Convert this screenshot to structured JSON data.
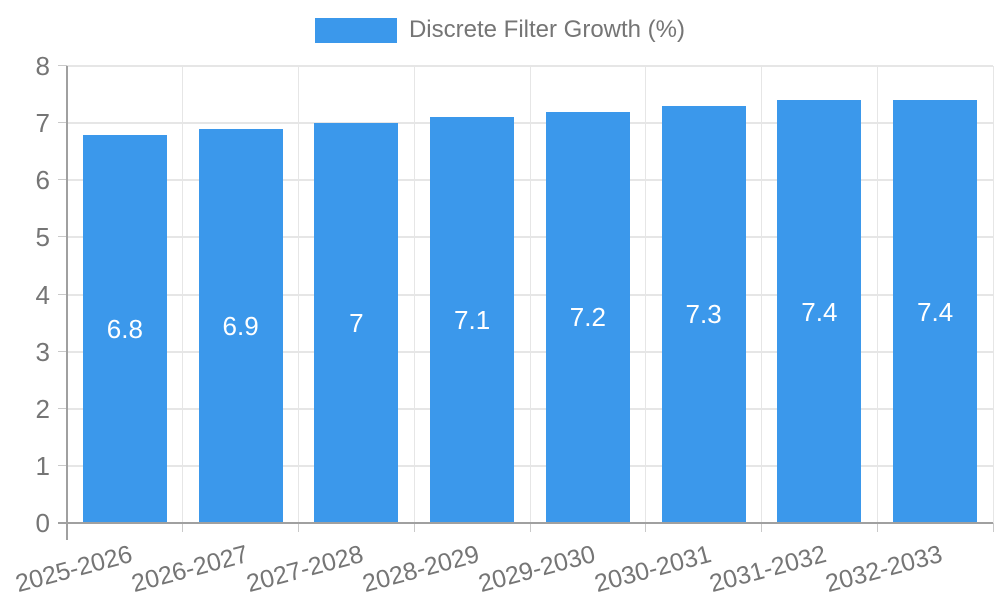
{
  "legend": {
    "label": "Discrete Filter Growth (%)"
  },
  "colors": {
    "bar": "#3b98eb",
    "bar_label_text": "#ffffff",
    "axis_text": "#757575",
    "legend_text": "#757575",
    "gridline": "#e6e6e6",
    "axis_line": "#a0a0a0",
    "tick": "#c9c9c9",
    "background": "#ffffff"
  },
  "chart_data": {
    "type": "bar",
    "title": "Discrete Filter Growth (%)",
    "categories": [
      "2025-2026",
      "2026-2027",
      "2027-2028",
      "2028-2029",
      "2029-2030",
      "2030-2031",
      "2031-2032",
      "2032-2033"
    ],
    "values": [
      6.8,
      6.9,
      7,
      7.1,
      7.2,
      7.3,
      7.4,
      7.4
    ],
    "bar_labels": [
      "6.8",
      "6.9",
      "7",
      "7.1",
      "7.2",
      "7.3",
      "7.4",
      "7.4"
    ],
    "xlabel": "",
    "ylabel": "",
    "ylim": [
      0,
      8
    ],
    "yticks": [
      0,
      1,
      2,
      3,
      4,
      5,
      6,
      7,
      8
    ],
    "grid": true,
    "legend_position": "top",
    "bar_label_position": "center",
    "x_tick_label_rotation_deg": -15
  }
}
